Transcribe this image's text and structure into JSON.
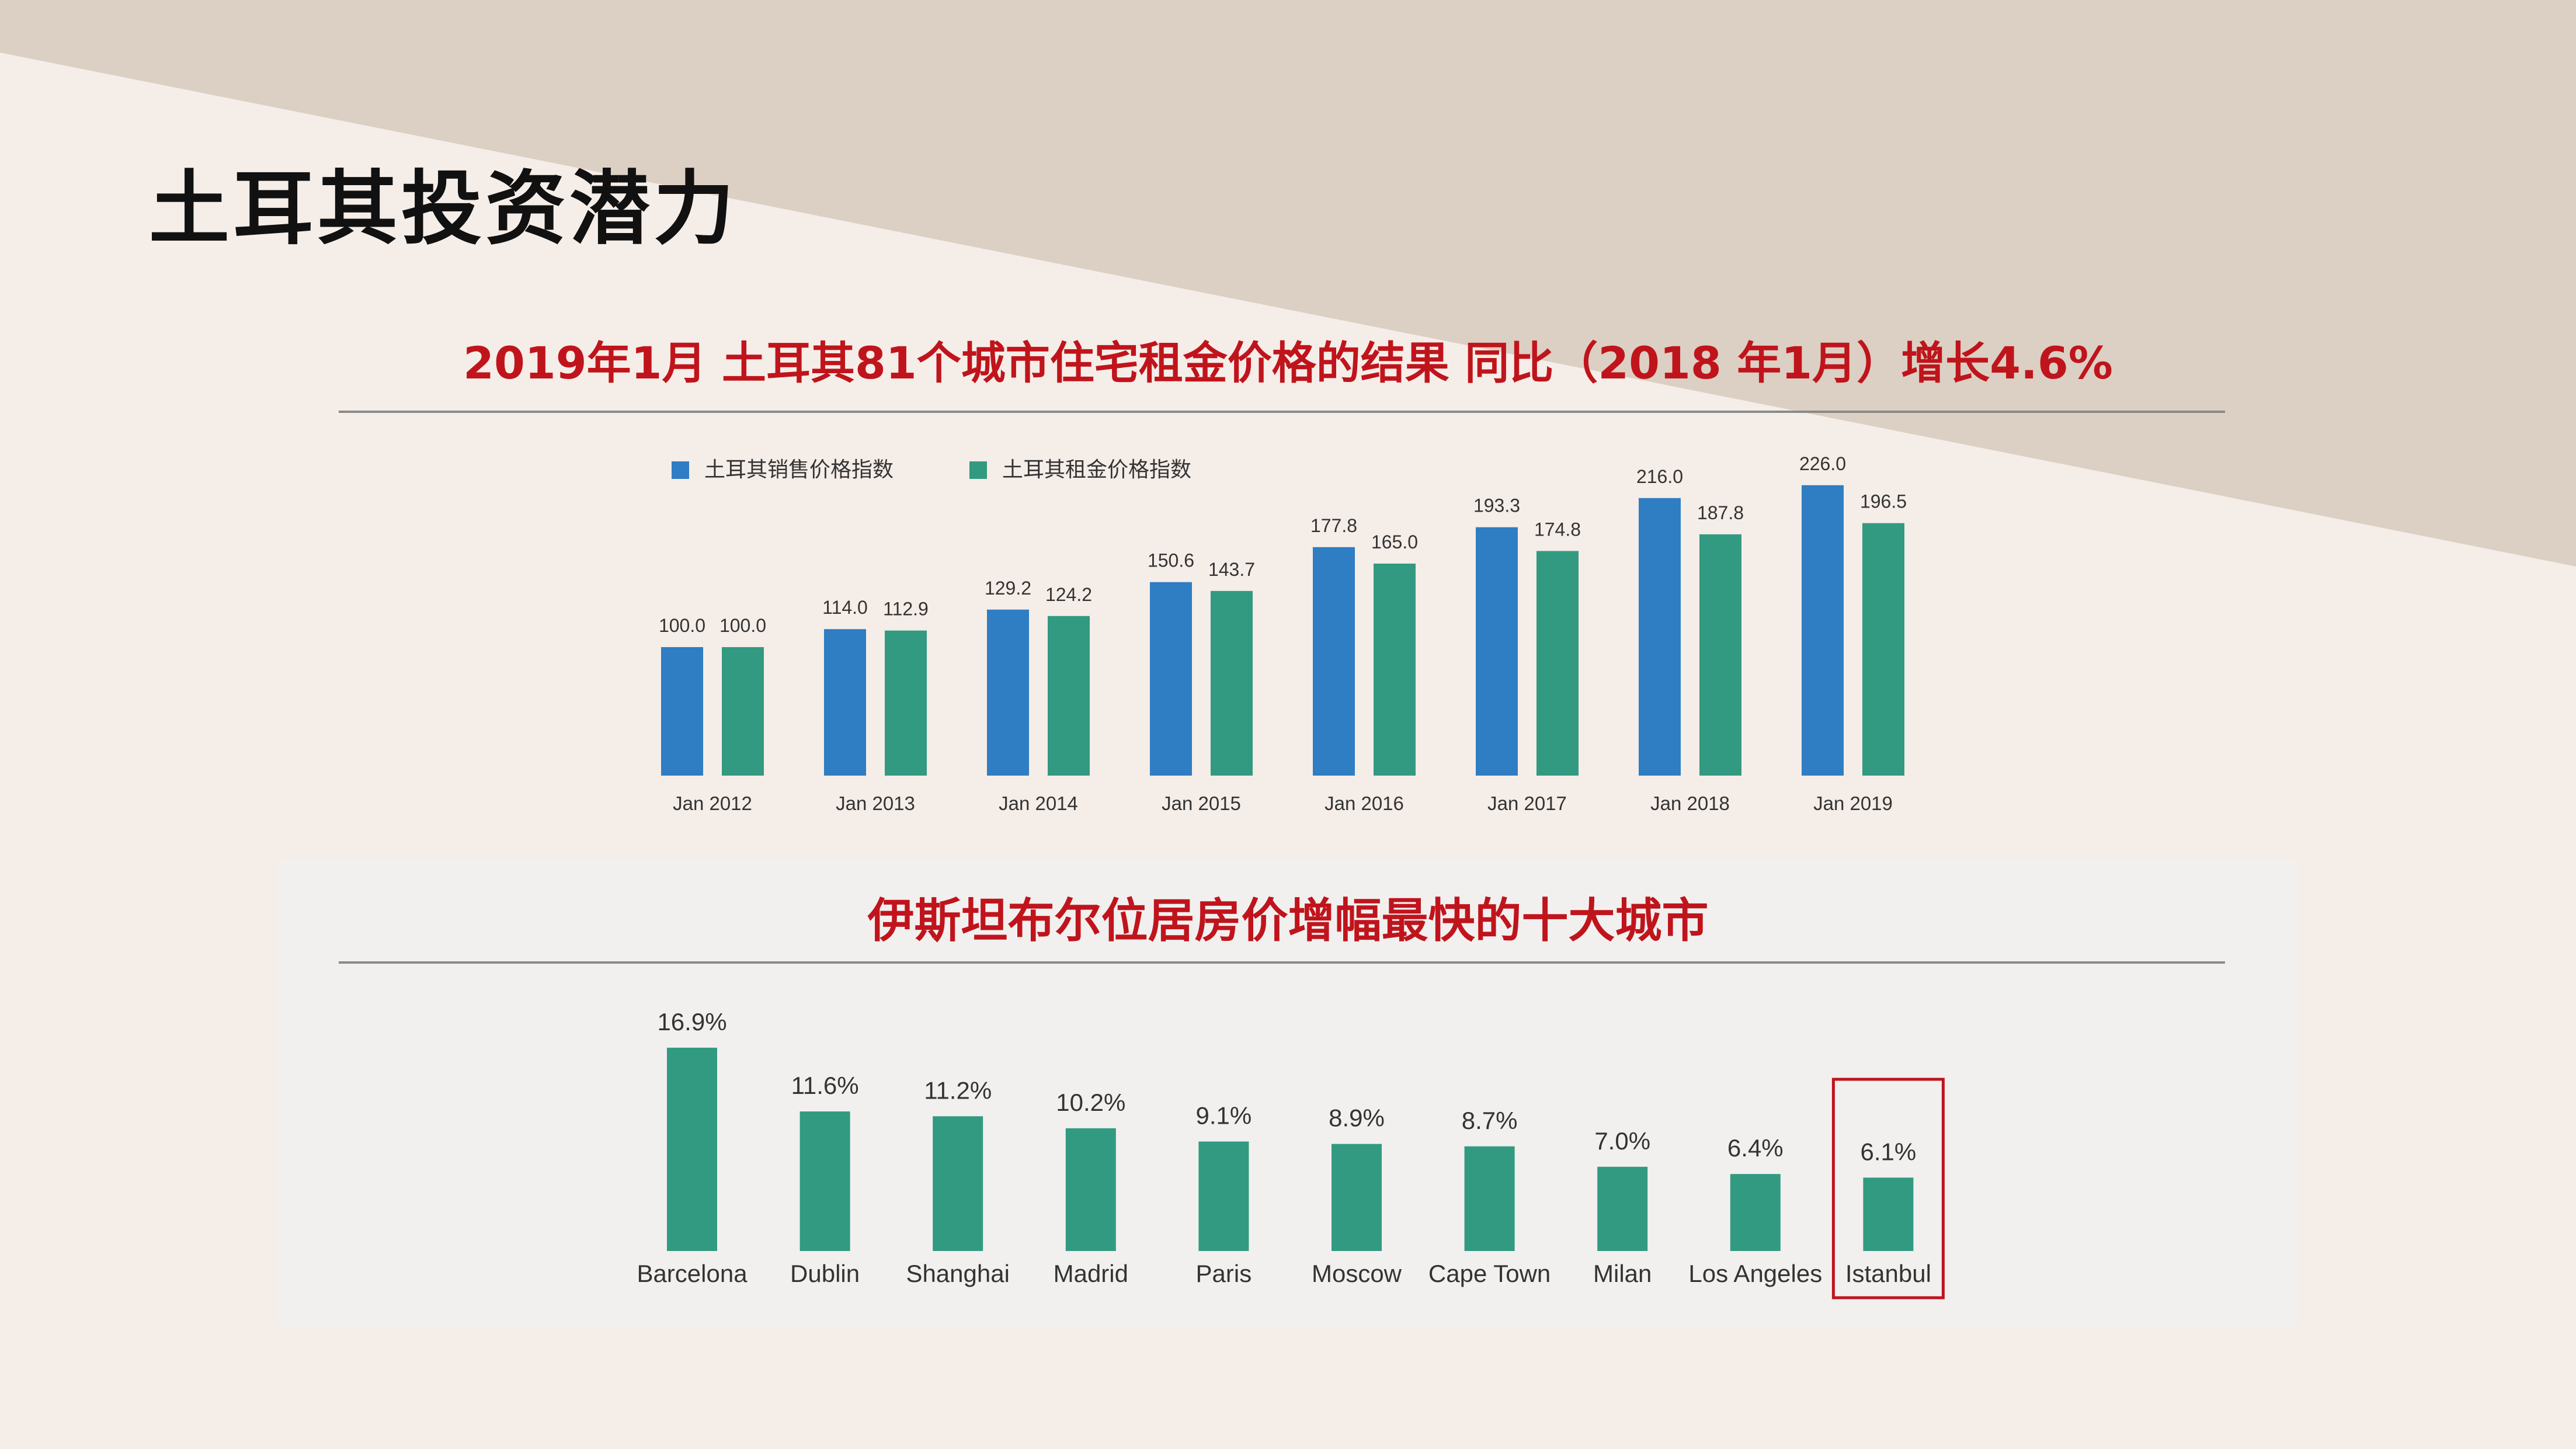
{
  "slide": {
    "title": "土耳其投资潜力"
  },
  "colors": {
    "background": "#f5ede8",
    "background_band": "#dbd0c3",
    "heading_red": "#c0141c",
    "sales_blue": "#2f7dc2",
    "rent_green": "#329a80",
    "bar_green": "#329a80",
    "highlight_box": "#c0141c"
  },
  "chart_data": [
    {
      "type": "bar",
      "title": "2019年1月 土耳其81个城市住宅租金价格的结果 同比（2018 年1月）增长4.6%",
      "categories": [
        "Jan 2012",
        "Jan 2013",
        "Jan 2014",
        "Jan 2015",
        "Jan 2016",
        "Jan 2017",
        "Jan 2018",
        "Jan 2019"
      ],
      "series": [
        {
          "name": "土耳其销售价格指数",
          "values": [
            100.0,
            114.0,
            129.2,
            150.6,
            177.8,
            193.3,
            216.0,
            226.0
          ],
          "color": "#2f7dc2"
        },
        {
          "name": "土耳其租金价格指数",
          "values": [
            100.0,
            112.9,
            124.2,
            143.7,
            165.0,
            174.8,
            187.8,
            196.5
          ],
          "color": "#329a80"
        }
      ],
      "value_labels": [
        [
          "100.0",
          "114.0",
          "129.2",
          "150.6",
          "177.8",
          "193.3",
          "216.0",
          "226.0"
        ],
        [
          "100.0",
          "112.9",
          "124.2",
          "143.7",
          "165.0",
          "174.8",
          "187.8",
          "196.5"
        ]
      ],
      "legend_position": "top-left",
      "grid": false
    },
    {
      "type": "bar",
      "title": "伊斯坦布尔位居房价增幅最快的十大城市",
      "categories": [
        "Barcelona",
        "Dublin",
        "Shanghai",
        "Madrid",
        "Paris",
        "Moscow",
        "Cape Town",
        "Milan",
        "Los Angeles",
        "Istanbul"
      ],
      "values": [
        16.9,
        11.6,
        11.2,
        10.2,
        9.1,
        8.9,
        8.7,
        7.0,
        6.4,
        6.1
      ],
      "value_labels": [
        "16.9%",
        "11.6%",
        "11.2%",
        "10.2%",
        "9.1%",
        "8.9%",
        "8.7%",
        "7.0%",
        "6.4%",
        "6.1%"
      ],
      "highlighted_category": "Istanbul",
      "grid": false
    }
  ]
}
